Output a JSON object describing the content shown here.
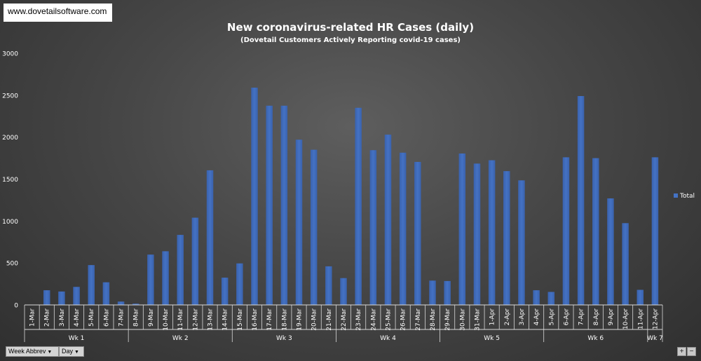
{
  "url_label": "www.dovetailsoftware.com",
  "chart_data": {
    "type": "bar",
    "title": "New coronavirus-related HR Cases (daily)",
    "subtitle": "(Dovetail Customers Actively Reporting covid-19 cases)",
    "xlabel": "",
    "ylabel": "",
    "ylim": [
      0,
      3000
    ],
    "yticks": [
      0,
      500,
      1000,
      1500,
      2000,
      2500,
      3000
    ],
    "grid": false,
    "legend_position": "right",
    "categories": [
      "1-Mar",
      "2-Mar",
      "3-Mar",
      "4-Mar",
      "5-Mar",
      "6-Mar",
      "7-Mar",
      "8-Mar",
      "9-Mar",
      "10-Mar",
      "11-Mar",
      "12-Mar",
      "13-Mar",
      "14-Mar",
      "15-Mar",
      "16-Mar",
      "17-Mar",
      "18-Mar",
      "19-Mar",
      "20-Mar",
      "21-Mar",
      "22-Mar",
      "23-Mar",
      "24-Mar",
      "25-Mar",
      "26-Mar",
      "27-Mar",
      "28-Mar",
      "29-Mar",
      "30-Mar",
      "31-Mar",
      "1-Apr",
      "2-Apr",
      "3-Apr",
      "4-Apr",
      "5-Apr",
      "6-Apr",
      "7-Apr",
      "8-Apr",
      "9-Apr",
      "10-Apr",
      "11-Apr",
      "12-Apr"
    ],
    "series": [
      {
        "name": "Total",
        "color": "#4472c4",
        "values": [
          0,
          175,
          160,
          215,
          475,
          270,
          40,
          15,
          600,
          640,
          835,
          1040,
          1605,
          325,
          495,
          2590,
          2375,
          2375,
          1970,
          1850,
          460,
          320,
          2350,
          1845,
          2030,
          1815,
          1705,
          290,
          285,
          1805,
          1685,
          1725,
          1595,
          1485,
          175,
          155,
          1760,
          2490,
          1750,
          1270,
          975,
          180,
          1760
        ]
      }
    ],
    "groups": [
      {
        "label": "Wk 1",
        "count": 7
      },
      {
        "label": "Wk 2",
        "count": 7
      },
      {
        "label": "Wk 3",
        "count": 7
      },
      {
        "label": "Wk 4",
        "count": 7
      },
      {
        "label": "Wk 5",
        "count": 7
      },
      {
        "label": "Wk 6",
        "count": 7
      },
      {
        "label": "Wk 7",
        "count": 1
      }
    ]
  },
  "controls": {
    "week_button": "Week Abbrev",
    "day_button": "Day",
    "zoom_in": "+",
    "zoom_out": "−"
  }
}
